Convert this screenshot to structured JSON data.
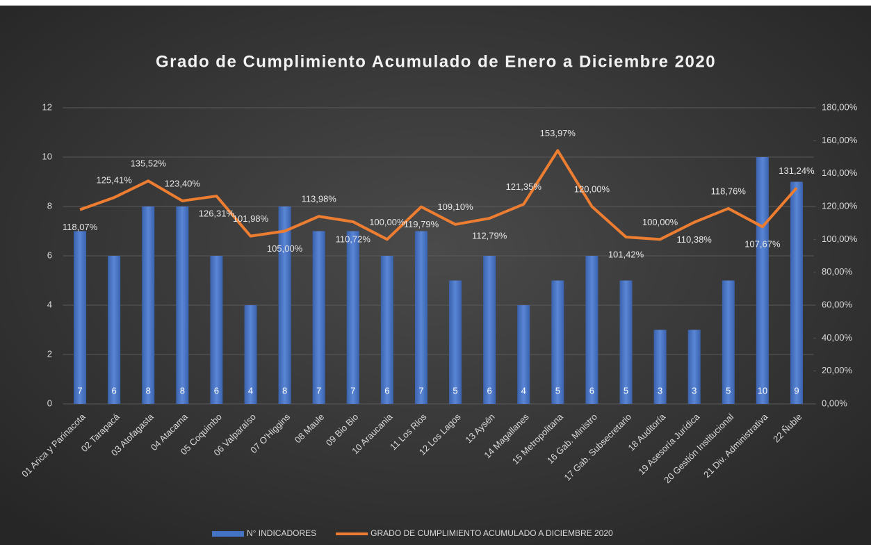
{
  "chart_data": {
    "type": "combo",
    "title": "Grado de Cumplimiento Acumulado de Enero a Diciembre 2020",
    "categories": [
      "01 Arica y Parinacota",
      "02 Tarapacá",
      "03 Atofagasta",
      "04 Atacama",
      "05 Coquimbo",
      "06 Valparaíso",
      "07 O'Higgins",
      "08 Maule",
      "09 Bio Bio",
      "10 Araucania",
      "11 Los Rios",
      "12 Los Lagos",
      "13 Aysén",
      "14 Magallanes",
      "15 Metropolitana",
      "16 Gab. Ministro",
      "17 Gab. Subsecretario",
      "18 Auditoría",
      "19 Asesoría Jurídica",
      "20 Gestión Institucional",
      "21 Div. Administrativa",
      "22 Ñuble"
    ],
    "series": [
      {
        "name": "N° INDICADORES",
        "type": "bar",
        "color": "#4472c4",
        "values": [
          7,
          6,
          8,
          8,
          6,
          4,
          8,
          7,
          7,
          6,
          7,
          5,
          6,
          4,
          5,
          6,
          5,
          3,
          3,
          5,
          10,
          9
        ]
      },
      {
        "name": "GRADO DE CUMPLIMIENTO ACUMULADO A DICIEMBRE 2020",
        "type": "line",
        "axis": "y2",
        "color": "#ed7d31",
        "values": [
          118.07,
          125.41,
          135.52,
          123.4,
          126.31,
          101.98,
          105.0,
          113.98,
          110.72,
          100.0,
          119.79,
          109.1,
          112.79,
          121.35,
          153.97,
          120.0,
          101.42,
          100.0,
          110.38,
          118.76,
          107.67,
          131.24
        ],
        "value_labels": [
          "118,07%",
          "125,41%",
          "135,52%",
          "123,40%",
          "126,31%",
          "101,98%",
          "105,00%",
          "113,98%",
          "110,72%",
          "100,00%",
          "119,79%",
          "109,10%",
          "112,79%",
          "121,35%",
          "153,97%",
          "120,00%",
          "101,42%",
          "100,00%",
          "110,38%",
          "118,76%",
          "107,67%",
          "131,24%"
        ]
      }
    ],
    "ylim": [
      0,
      12
    ],
    "yticks": [
      0,
      2,
      4,
      6,
      8,
      10,
      12
    ],
    "y2lim": [
      0,
      180
    ],
    "y2ticks": [
      {
        "value": 0,
        "label": "0,00%"
      },
      {
        "value": 20,
        "label": "20,00%"
      },
      {
        "value": 40,
        "label": "40,00%"
      },
      {
        "value": 60,
        "label": "60,00%"
      },
      {
        "value": 80,
        "label": "80,00%"
      },
      {
        "value": 100,
        "label": "100,00%"
      },
      {
        "value": 120,
        "label": "120,00%"
      },
      {
        "value": 140,
        "label": "140,00%"
      },
      {
        "value": 160,
        "label": "160,00%"
      },
      {
        "value": 180,
        "label": "180,00%"
      }
    ],
    "grid": true,
    "legend": "bottom"
  }
}
